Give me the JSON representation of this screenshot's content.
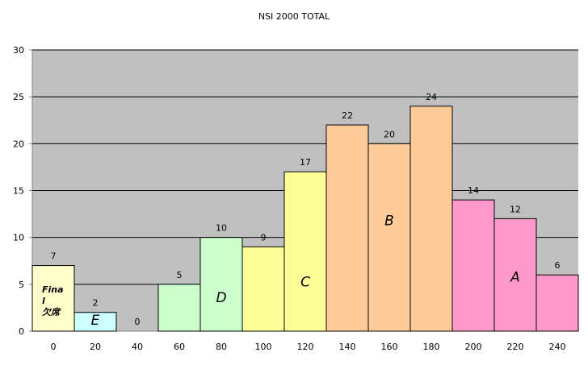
{
  "chart_data": {
    "type": "bar",
    "title": "NSI 2000 TOTAL",
    "categories": [
      "0",
      "20",
      "40",
      "60",
      "80",
      "100",
      "120",
      "140",
      "160",
      "180",
      "200",
      "220",
      "240"
    ],
    "values": [
      7,
      2,
      0,
      5,
      10,
      9,
      17,
      22,
      20,
      24,
      14,
      12,
      6
    ],
    "bar_colors": [
      "#ffffcc",
      "#ccffff",
      "#ccffcc",
      "#ccffcc",
      "#ccffcc",
      "#ffff99",
      "#ffff99",
      "#ffcc99",
      "#ffcc99",
      "#ffcc99",
      "#ff99cc",
      "#ff99cc",
      "#ff99cc"
    ],
    "ylim": [
      0,
      30
    ],
    "yticks": [
      0,
      5,
      10,
      15,
      20,
      25,
      30
    ],
    "grid": true,
    "plot_background": "#c0c0c0",
    "gridline_color": "#000000",
    "grade_labels": [
      {
        "text": "E",
        "bar": 1,
        "y": 1.2
      },
      {
        "text": "D",
        "bar": 4,
        "y": 3.6
      },
      {
        "text": "C",
        "bar": 6,
        "y": 5.3
      },
      {
        "text": "B",
        "bar": 8,
        "y": 11.8
      },
      {
        "text": "A",
        "bar": 11,
        "y": 5.8
      }
    ],
    "annotation_lines": [
      "Fina",
      "l",
      "欠席"
    ]
  }
}
